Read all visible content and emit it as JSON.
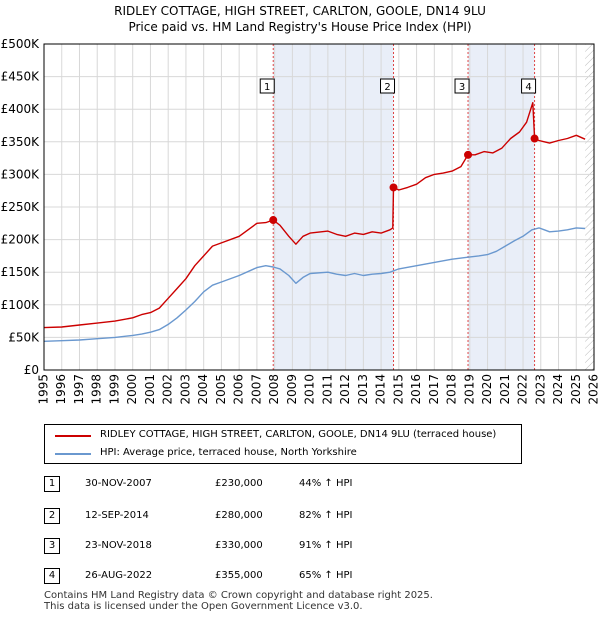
{
  "title_line1": "RIDLEY COTTAGE, HIGH STREET, CARLTON, GOOLE, DN14 9LU",
  "title_line2": "Price paid vs. HM Land Registry's House Price Index (HPI)",
  "colors": {
    "property": "#cc0000",
    "hpi": "#6a98cf",
    "shade": "#e9eef8",
    "grid": "#d8d8d8"
  },
  "chart_data": {
    "type": "line",
    "title": "Price paid vs. HM Land Registry's House Price Index (HPI)",
    "xlim": [
      1995,
      2026
    ],
    "ylim": [
      0,
      500000
    ],
    "yticks": [
      0,
      50000,
      100000,
      150000,
      200000,
      250000,
      300000,
      350000,
      400000,
      450000,
      500000
    ],
    "ytick_labels": [
      "£0",
      "£50K",
      "£100K",
      "£150K",
      "£200K",
      "£250K",
      "£300K",
      "£350K",
      "£400K",
      "£450K",
      "£500K"
    ],
    "xticks": [
      1995,
      1996,
      1997,
      1998,
      1999,
      2000,
      2001,
      2002,
      2003,
      2004,
      2005,
      2006,
      2007,
      2008,
      2009,
      2010,
      2011,
      2012,
      2013,
      2014,
      2015,
      2016,
      2017,
      2018,
      2019,
      2020,
      2021,
      2022,
      2023,
      2024,
      2025,
      2026
    ],
    "xtick_labels": [
      "1995",
      "1996",
      "1997",
      "1998",
      "1999",
      "2000",
      "2001",
      "2002",
      "2003",
      "2004",
      "2005",
      "2006",
      "2007",
      "2008",
      "2009",
      "2010",
      "2011",
      "2012",
      "2013",
      "2014",
      "2015",
      "2016",
      "2017",
      "2018",
      "2019",
      "2020",
      "2021",
      "2022",
      "2023",
      "2024",
      "2025",
      "2026"
    ],
    "grid": true,
    "shaded_ranges": [
      [
        2007.92,
        2014.7
      ],
      [
        2018.9,
        2022.65
      ]
    ],
    "future_hatch_from": 2025.5,
    "series": [
      {
        "name": "RIDLEY COTTAGE, HIGH STREET, CARLTON, GOOLE, DN14 9LU (terraced house)",
        "color": "#cc0000",
        "x": [
          1995,
          1996,
          1997,
          1998,
          1999,
          2000,
          2000.5,
          2001,
          2001.5,
          2002,
          2002.5,
          2003,
          2003.5,
          2004,
          2004.5,
          2005,
          2006,
          2007,
          2007.5,
          2007.92,
          2008.3,
          2008.8,
          2009.2,
          2009.6,
          2010,
          2011,
          2011.5,
          2012,
          2012.5,
          2013,
          2013.5,
          2014,
          2014.5,
          2014.66,
          2014.7,
          2015,
          2015.5,
          2016,
          2016.5,
          2017,
          2017.5,
          2018,
          2018.5,
          2018.9,
          2019.3,
          2019.8,
          2020.3,
          2020.8,
          2021.3,
          2021.8,
          2022.2,
          2022.55,
          2022.65,
          2022.9,
          2023.2,
          2023.5,
          2024,
          2024.5,
          2025,
          2025.5
        ],
        "y": [
          65000,
          66000,
          69000,
          72000,
          75000,
          80000,
          85000,
          88000,
          95000,
          110000,
          125000,
          140000,
          160000,
          175000,
          190000,
          195000,
          205000,
          225000,
          226000,
          230000,
          222000,
          205000,
          193000,
          205000,
          210000,
          213000,
          208000,
          205000,
          210000,
          208000,
          212000,
          210000,
          215000,
          218000,
          280000,
          276000,
          280000,
          285000,
          295000,
          300000,
          302000,
          305000,
          312000,
          330000,
          330000,
          335000,
          333000,
          340000,
          355000,
          365000,
          380000,
          410000,
          355000,
          352000,
          350000,
          348000,
          352000,
          355000,
          360000,
          354000
        ]
      },
      {
        "name": "HPI: Average price, terraced house, North Yorkshire",
        "color": "#6a98cf",
        "x": [
          1995,
          1996,
          1997,
          1998,
          1999,
          2000,
          2000.5,
          2001,
          2001.5,
          2002,
          2002.5,
          2003,
          2003.5,
          2004,
          2004.5,
          2005,
          2006,
          2007,
          2007.5,
          2007.92,
          2008.3,
          2008.8,
          2009.2,
          2009.6,
          2010,
          2011,
          2011.5,
          2012,
          2012.5,
          2013,
          2013.5,
          2014,
          2014.5,
          2015,
          2016,
          2017,
          2018,
          2018.9,
          2019.5,
          2020,
          2020.5,
          2021,
          2021.5,
          2022,
          2022.5,
          2022.9,
          2023.2,
          2023.5,
          2024,
          2024.5,
          2025,
          2025.5
        ],
        "y": [
          44000,
          45000,
          46000,
          48000,
          50000,
          53000,
          55000,
          58000,
          62000,
          70000,
          80000,
          92000,
          105000,
          120000,
          130000,
          135000,
          145000,
          157000,
          160000,
          158000,
          155000,
          145000,
          133000,
          142000,
          148000,
          150000,
          147000,
          145000,
          148000,
          145000,
          147000,
          148000,
          150000,
          155000,
          160000,
          165000,
          170000,
          173000,
          175000,
          177000,
          182000,
          190000,
          198000,
          205000,
          215000,
          218000,
          215000,
          212000,
          213000,
          215000,
          218000,
          217000
        ]
      }
    ],
    "sales": [
      {
        "num": "1",
        "x": 2007.92,
        "y": 230000
      },
      {
        "num": "2",
        "x": 2014.7,
        "y": 280000
      },
      {
        "num": "3",
        "x": 2018.9,
        "y": 330000
      },
      {
        "num": "4",
        "x": 2022.65,
        "y": 355000
      }
    ]
  },
  "legend": {
    "property_label": "RIDLEY COTTAGE, HIGH STREET, CARLTON, GOOLE, DN14 9LU (terraced house)",
    "hpi_label": "HPI: Average price, terraced house, North Yorkshire"
  },
  "sales_table": [
    {
      "num": "1",
      "date": "30-NOV-2007",
      "price": "£230,000",
      "hpi": "44% ↑ HPI"
    },
    {
      "num": "2",
      "date": "12-SEP-2014",
      "price": "£280,000",
      "hpi": "82% ↑ HPI"
    },
    {
      "num": "3",
      "date": "23-NOV-2018",
      "price": "£330,000",
      "hpi": "91% ↑ HPI"
    },
    {
      "num": "4",
      "date": "26-AUG-2022",
      "price": "£355,000",
      "hpi": "65% ↑ HPI"
    }
  ],
  "footer_line1": "Contains HM Land Registry data © Crown copyright and database right 2025.",
  "footer_line2": "This data is licensed under the Open Government Licence v3.0."
}
